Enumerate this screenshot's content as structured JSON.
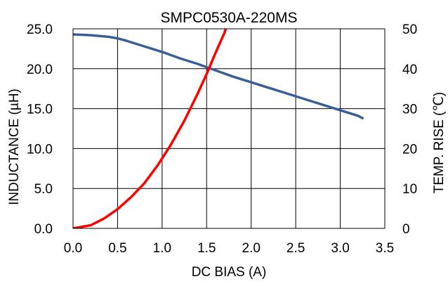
{
  "chart_data": {
    "type": "line",
    "title": "SMPC0530A-220MS",
    "xlabel": "DC BIAS (A)",
    "ylabel_left": "INDUCTANCE (µH)",
    "ylabel_right": "TEMP. RISE (℃)",
    "x_ticks": [
      "0.0",
      "0.5",
      "1.0",
      "1.5",
      "2.0",
      "2.5",
      "3.0",
      "3.5"
    ],
    "y_left_ticks": [
      "0.0",
      "5.0",
      "10.0",
      "15.0",
      "20.0",
      "25.0"
    ],
    "y_right_ticks": [
      "0",
      "10",
      "20",
      "30",
      "40",
      "50"
    ],
    "xlim": [
      0,
      3.5
    ],
    "ylim_left": [
      0,
      25
    ],
    "ylim_right": [
      0,
      50
    ],
    "grid": true,
    "series": [
      {
        "axis": "left",
        "color": "#3a5f98",
        "x": [
          0.0,
          0.2,
          0.4,
          0.5,
          0.6,
          0.8,
          1.0,
          1.2,
          1.4,
          1.6,
          1.8,
          2.0,
          2.2,
          2.4,
          2.6,
          2.8,
          3.0,
          3.2,
          3.25
        ],
        "y": [
          24.3,
          24.2,
          24.0,
          23.8,
          23.5,
          22.8,
          22.1,
          21.3,
          20.6,
          19.8,
          19.0,
          18.3,
          17.6,
          16.9,
          16.2,
          15.5,
          14.8,
          14.1,
          13.8
        ]
      },
      {
        "axis": "right",
        "color": "#ff0000",
        "x": [
          0.0,
          0.2,
          0.35,
          0.5,
          0.65,
          0.8,
          0.95,
          1.1,
          1.25,
          1.4,
          1.5,
          1.6,
          1.7,
          1.8
        ],
        "y": [
          0,
          0.8,
          2.5,
          4.8,
          7.8,
          11.3,
          15.8,
          21.0,
          27.0,
          33.8,
          38.7,
          44.0,
          49.0,
          56.0
        ]
      }
    ]
  }
}
